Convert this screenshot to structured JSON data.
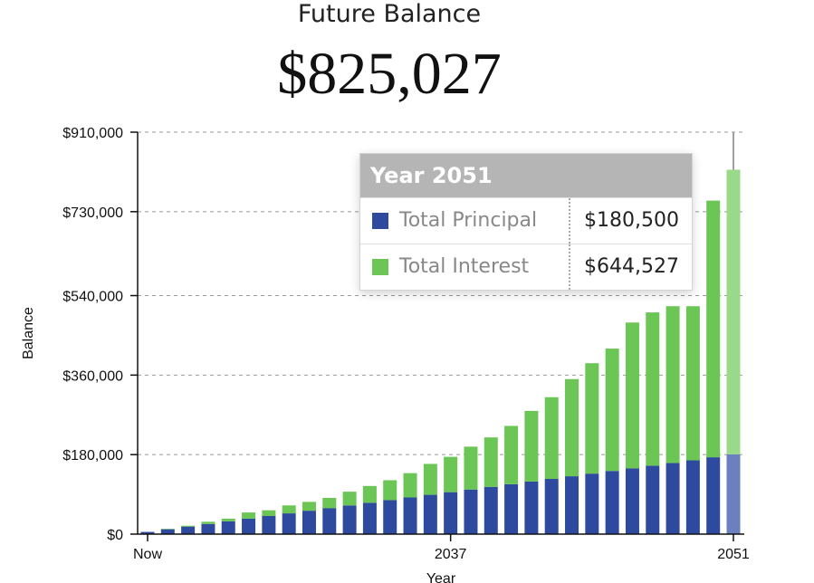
{
  "header": {
    "label": "Future Balance",
    "value": "$825,027"
  },
  "tooltip": {
    "title": "Year 2051",
    "rows": [
      {
        "label": "Total Principal",
        "value": "$180,500",
        "color": "#2e4a9e"
      },
      {
        "label": "Total Interest",
        "value": "$644,527",
        "color": "#6cc655"
      }
    ]
  },
  "colors": {
    "principal": "#2e4a9e",
    "interest": "#6cc655",
    "principal_highlight": "#6b80bf",
    "interest_highlight": "#99d98a",
    "grid": "#999999",
    "cursor_line": "#a0a0a0"
  },
  "chart_data": {
    "type": "bar",
    "stacked": true,
    "xlabel": "Year",
    "ylabel": "Balance",
    "ylim": [
      0,
      910000
    ],
    "y_ticks": [
      0,
      180000,
      360000,
      540000,
      730000,
      910000
    ],
    "y_tick_labels": [
      "$0",
      "$180,000",
      "$360,000",
      "$540,000",
      "$730,000",
      "$910,000"
    ],
    "x_tick_labels": [
      "Now",
      "2037",
      "2051"
    ],
    "highlighted_category": "2051",
    "categories": [
      "2022",
      "2023",
      "2024",
      "2025",
      "2026",
      "2027",
      "2028",
      "2029",
      "2030",
      "2031",
      "2032",
      "2033",
      "2034",
      "2035",
      "2036",
      "2037",
      "2038",
      "2039",
      "2040",
      "2041",
      "2042",
      "2043",
      "2044",
      "2045",
      "2046",
      "2047",
      "2048",
      "2049",
      "2050",
      "2051"
    ],
    "series": [
      {
        "name": "Total Principal",
        "values": [
          5000,
          11000,
          17000,
          23000,
          29000,
          35000,
          41000,
          47000,
          53000,
          59000,
          65000,
          71000,
          77000,
          83000,
          89000,
          95000,
          101000,
          107000,
          113000,
          119000,
          125000,
          131000,
          137000,
          143000,
          149000,
          155000,
          161000,
          167000,
          174000,
          180500
        ]
      },
      {
        "name": "Total Interest",
        "values": [
          0,
          1000,
          2000,
          5000,
          6000,
          14000,
          13000,
          18000,
          20000,
          23000,
          31000,
          38000,
          45000,
          55000,
          70000,
          80000,
          97000,
          112000,
          132000,
          160000,
          185000,
          220000,
          250000,
          277000,
          330000,
          347000,
          355000,
          349000,
          581000,
          644527
        ]
      }
    ]
  }
}
